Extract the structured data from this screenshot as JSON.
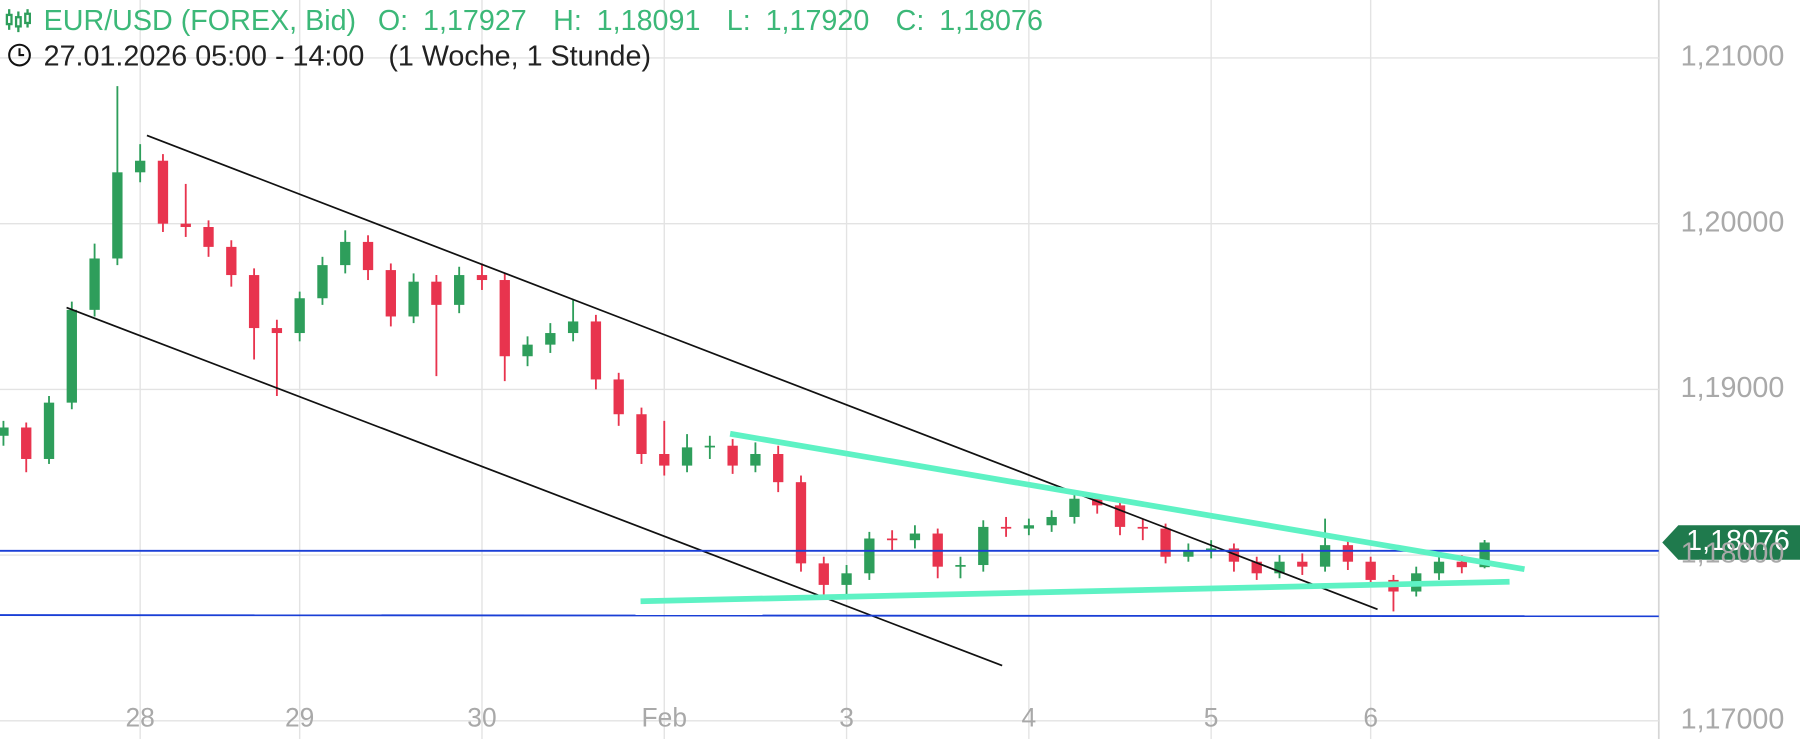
{
  "chart_data": {
    "type": "candlestick",
    "title": "EUR/USD (FOREX, Bid)",
    "ohlc_labels": [
      "O:",
      "H:",
      "L:",
      "C:"
    ],
    "ohlc_value_labels": [
      "1,17927",
      "1,18091",
      "1,17920",
      "1,18076"
    ],
    "subtitle": "27.01.2026 05:00 - 14:00",
    "period": "(1 Woche, 1 Stunde)",
    "last_label": "1,18076",
    "up_color": "#2e9e5b",
    "down_color": "#e8344e",
    "tag_color": "#1f7a4d",
    "header_color": "#3cb878",
    "grid": true,
    "categories": [
      null,
      null,
      null,
      null,
      null,
      null,
      "28",
      null,
      null,
      null,
      null,
      null,
      null,
      "29",
      null,
      null,
      null,
      null,
      null,
      null,
      null,
      "30",
      null,
      null,
      null,
      null,
      null,
      null,
      null,
      "Feb",
      null,
      null,
      null,
      null,
      null,
      null,
      null,
      "3",
      null,
      null,
      null,
      null,
      null,
      null,
      null,
      "4",
      null,
      null,
      null,
      null,
      null,
      null,
      null,
      "5",
      null,
      null,
      null,
      null,
      null,
      null,
      "6",
      null,
      null,
      null,
      null,
      null
    ],
    "open": [
      1.1872,
      1.1877,
      1.1858,
      1.1892,
      1.1948,
      1.1979,
      1.2031,
      1.2038,
      1.2,
      1.1998,
      1.1986,
      1.1969,
      1.1937,
      1.1934,
      1.1955,
      1.1975,
      1.1989,
      1.1972,
      1.1944,
      1.1965,
      1.1951,
      1.1969,
      1.1966,
      1.192,
      1.1927,
      1.1934,
      1.1941,
      1.1906,
      1.1885,
      1.1861,
      1.1854,
      1.1865,
      1.1866,
      1.1854,
      1.1861,
      1.1844,
      1.1795,
      1.1782,
      1.1789,
      1.181,
      1.1809,
      1.1813,
      1.1793,
      1.1794,
      1.1817,
      1.1816,
      1.1818,
      1.1823,
      1.1834,
      1.183,
      1.1817,
      1.1816,
      1.1799,
      1.1803,
      1.1804,
      1.1796,
      1.1789,
      1.1796,
      1.1793,
      1.1806,
      1.1796,
      1.1785,
      1.1778,
      1.1789,
      1.1796,
      1.17927
    ],
    "high": [
      1.1881,
      1.188,
      1.1896,
      1.1953,
      1.1988,
      1.2083,
      1.2048,
      1.2042,
      1.2024,
      1.2002,
      1.199,
      1.1973,
      1.1942,
      1.1959,
      1.198,
      1.1996,
      1.1993,
      1.1976,
      1.197,
      1.1969,
      1.1974,
      1.1976,
      1.197,
      1.1932,
      1.194,
      1.1954,
      1.1945,
      1.191,
      1.1889,
      1.1881,
      1.1873,
      1.1872,
      1.187,
      1.1868,
      1.1866,
      1.1848,
      1.1799,
      1.1794,
      1.1814,
      1.1815,
      1.1818,
      1.1816,
      1.1799,
      1.1821,
      1.1823,
      1.1822,
      1.1827,
      1.1837,
      1.1836,
      1.1833,
      1.1822,
      1.1819,
      1.1807,
      1.1809,
      1.1807,
      1.1799,
      1.18,
      1.1801,
      1.1822,
      1.1809,
      1.1799,
      1.1788,
      1.1793,
      1.1799,
      1.18,
      1.18091
    ],
    "low": [
      1.1866,
      1.185,
      1.1855,
      1.1888,
      1.1944,
      1.1975,
      1.2025,
      1.1995,
      1.1992,
      1.198,
      1.1962,
      1.1918,
      1.1896,
      1.1929,
      1.1951,
      1.197,
      1.1966,
      1.1938,
      1.194,
      1.1908,
      1.1946,
      1.196,
      1.1905,
      1.1914,
      1.1922,
      1.1929,
      1.19,
      1.1878,
      1.1855,
      1.1848,
      1.185,
      1.1858,
      1.1849,
      1.185,
      1.1838,
      1.179,
      1.1775,
      1.1776,
      1.1785,
      1.1803,
      1.1804,
      1.1786,
      1.1786,
      1.179,
      1.1811,
      1.1812,
      1.1814,
      1.1819,
      1.1825,
      1.1812,
      1.1809,
      1.1795,
      1.1796,
      1.1798,
      1.179,
      1.1785,
      1.1786,
      1.1788,
      1.179,
      1.1791,
      1.1781,
      1.1766,
      1.1775,
      1.1785,
      1.1789,
      1.1792
    ],
    "close": [
      1.1877,
      1.1858,
      1.1892,
      1.1948,
      1.1979,
      1.2031,
      1.2038,
      1.2,
      1.1998,
      1.1986,
      1.1969,
      1.1937,
      1.1934,
      1.1955,
      1.1975,
      1.1989,
      1.1972,
      1.1944,
      1.1965,
      1.1951,
      1.1969,
      1.1966,
      1.192,
      1.1927,
      1.1934,
      1.1941,
      1.1906,
      1.1885,
      1.1861,
      1.1854,
      1.1865,
      1.1866,
      1.1854,
      1.1861,
      1.1844,
      1.1795,
      1.1782,
      1.1789,
      1.181,
      1.1809,
      1.1813,
      1.1793,
      1.1794,
      1.1817,
      1.1816,
      1.1818,
      1.1823,
      1.1834,
      1.183,
      1.1817,
      1.1816,
      1.1799,
      1.1803,
      1.1804,
      1.1796,
      1.1789,
      1.1796,
      1.1793,
      1.1806,
      1.1796,
      1.1785,
      1.1778,
      1.1789,
      1.1796,
      1.17927,
      1.18076
    ],
    "ylim": [
      1.1689,
      1.2135
    ],
    "yticks": [
      {
        "value": 1.17,
        "label": "1,17000"
      },
      {
        "value": 1.18,
        "label": "1,18000"
      },
      {
        "value": 1.19,
        "label": "1,19000"
      },
      {
        "value": 1.2,
        "label": "1,20000"
      },
      {
        "value": 1.21,
        "label": "1,21000"
      }
    ]
  }
}
